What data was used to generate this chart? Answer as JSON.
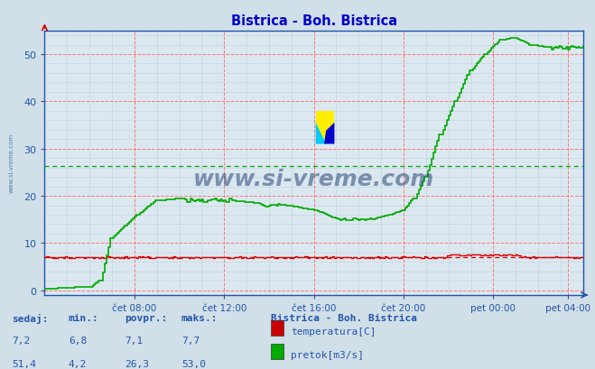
{
  "title": "Bistrica - Boh. Bistrica",
  "title_color": "#0000cc",
  "bg_color": "#d0dfe8",
  "plot_bg_color": "#dce8f0",
  "grid_major_color": "#ff7777",
  "grid_minor_color": "#99bbcc",
  "axis_color": "#2255aa",
  "tick_color": "#2255aa",
  "watermark_text": "www.si-vreme.com",
  "watermark_color": "#1a3a6e",
  "xlim_min": 0,
  "xlim_max": 288,
  "ylim_min": -1,
  "ylim_max": 55,
  "yticks": [
    0,
    10,
    20,
    30,
    40,
    50
  ],
  "xtick_labels": [
    "čet 08:00",
    "čet 12:00",
    "čet 16:00",
    "čet 20:00",
    "pet 00:00",
    "pet 04:00"
  ],
  "xtick_positions": [
    48,
    96,
    144,
    192,
    240,
    280
  ],
  "temp_color": "#dd0000",
  "flow_color": "#00aa00",
  "temp_avg_value": 7.1,
  "flow_avg_value": 26.3,
  "sidebar_text": "www.si-vreme.com",
  "legend_title": "Bistrica - Boh. Bistrica",
  "legend_items": [
    "temperatura[C]",
    "pretok[m3/s]"
  ],
  "legend_colors": [
    "#cc0000",
    "#00aa00"
  ],
  "stats_headers": [
    "sedaj:",
    "min.:",
    "povpr.:",
    "maks.:"
  ],
  "stats_temp": [
    "7,2",
    "6,8",
    "7,1",
    "7,7"
  ],
  "stats_flow": [
    "51,4",
    "4,2",
    "26,3",
    "53,0"
  ],
  "footer_color": "#2255aa",
  "footer_bg": "#c0d8e8"
}
